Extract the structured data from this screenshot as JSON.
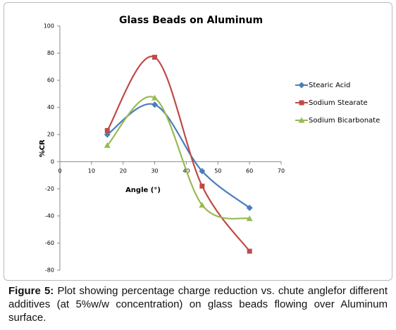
{
  "chart_data": {
    "type": "line",
    "title": "Glass Beads on Aluminum",
    "x_label": "Angle (°)",
    "y_label": "%CR",
    "x": [
      15,
      30,
      45,
      60
    ],
    "series": [
      {
        "name": "Stearic Acid",
        "color": "#4a7ebb",
        "marker": "diamond",
        "values": [
          20,
          42,
          -7,
          -34
        ]
      },
      {
        "name": "Sodium Stearate",
        "color": "#be4b48",
        "marker": "square",
        "values": [
          23,
          77,
          -18,
          -66
        ]
      },
      {
        "name": "Sodium Bicarbonate",
        "color": "#98b954",
        "marker": "triangle",
        "values": [
          12,
          47,
          -32,
          -42
        ]
      }
    ],
    "xlim": [
      0,
      70
    ],
    "xticks": [
      0,
      10,
      20,
      30,
      40,
      50,
      60,
      70
    ],
    "ylim": [
      -80,
      100
    ],
    "yticks": [
      -80,
      -60,
      -40,
      -20,
      0,
      20,
      40,
      60,
      80,
      100
    ],
    "smooth": true,
    "legend": "right"
  },
  "caption": {
    "label": "Figure 5:",
    "text": " Plot showing percentage charge reduction vs. chute anglefor different additives (at 5%w/w concentration) on glass beads flowing over Aluminum surface."
  }
}
